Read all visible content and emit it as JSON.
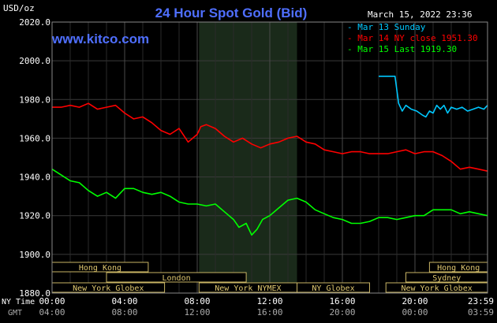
{
  "chart_data": {
    "type": "line",
    "title": "24 Hour Spot Gold (Bid)",
    "site": "www.kitco.com",
    "timestamp": "March 15, 2022 23:36",
    "unit_label": "USD/oz",
    "y_ticks": [
      "2020.0",
      "2000.0",
      "1980.0",
      "1960.0",
      "1940.0",
      "1920.0",
      "1900.0",
      "1880.0"
    ],
    "ylim": [
      1880,
      2020
    ],
    "xlim": [
      0,
      24
    ],
    "x_ticks": [
      0,
      4,
      8,
      12,
      16,
      20,
      24
    ],
    "x_tick_labels_ny": [
      "00:00",
      "04:00",
      "08:00",
      "12:00",
      "16:00",
      "20:00",
      "23:59"
    ],
    "x_tick_labels_gmt": [
      "04:00",
      "08:00",
      "12:00",
      "16:00",
      "20:00",
      "00:00",
      "03:59"
    ],
    "ny_time_label": "NY Time",
    "gmt_label": "GMT",
    "shaded_session": [
      8.1,
      13.5
    ],
    "legend": [
      {
        "label": "Mar 13 Sunday",
        "color": "#00c8ff"
      },
      {
        "label": "Mar 14 NY close 1951.30",
        "color": "#ff0000"
      },
      {
        "label": "Mar 15 Last 1919.30",
        "color": "#00ff00"
      }
    ],
    "series": [
      {
        "name": "Mar 13 Sunday",
        "color": "#00c8ff",
        "x": [
          18,
          18.3,
          18.6,
          18.9,
          19.0,
          19.1,
          19.3,
          19.5,
          19.8,
          20.1,
          20.4,
          20.6,
          20.8,
          21.0,
          21.2,
          21.4,
          21.6,
          21.8,
          22.0,
          22.3,
          22.6,
          22.9,
          23.2,
          23.5,
          23.8,
          24.0
        ],
        "y": [
          1992,
          1992,
          1992,
          1992,
          1985,
          1978,
          1974,
          1977,
          1975,
          1974,
          1972,
          1971,
          1974,
          1973,
          1977,
          1975,
          1977,
          1973,
          1976,
          1975,
          1976,
          1974,
          1975,
          1976,
          1975,
          1977
        ]
      },
      {
        "name": "Mar 14 NY close 1951.30",
        "color": "#ff0000",
        "x": [
          0,
          0.5,
          1,
          1.5,
          2,
          2.5,
          3,
          3.5,
          4,
          4.5,
          5,
          5.5,
          6,
          6.5,
          7,
          7.5,
          8,
          8.2,
          8.5,
          9,
          9.5,
          10,
          10.5,
          11,
          11.5,
          12,
          12.5,
          13,
          13.5,
          14,
          14.5,
          15,
          15.5,
          16,
          16.5,
          17,
          17.5,
          18,
          18.5,
          19,
          19.5,
          20,
          20.5,
          21,
          21.5,
          22,
          22.5,
          23,
          23.5,
          24
        ],
        "y": [
          1976,
          1976,
          1977,
          1976,
          1978,
          1975,
          1976,
          1977,
          1973,
          1970,
          1971,
          1968,
          1964,
          1962,
          1965,
          1958,
          1962,
          1966,
          1967,
          1965,
          1961,
          1958,
          1960,
          1957,
          1955,
          1957,
          1958,
          1960,
          1961,
          1958,
          1957,
          1954,
          1953,
          1952,
          1953,
          1953,
          1952,
          1952,
          1952,
          1953,
          1954,
          1952,
          1953,
          1953,
          1951,
          1948,
          1944,
          1945,
          1944,
          1943
        ]
      },
      {
        "name": "Mar 15 Last 1919.30",
        "color": "#00ff00",
        "x": [
          0,
          0.5,
          1,
          1.5,
          2,
          2.5,
          3,
          3.5,
          4,
          4.5,
          5,
          5.5,
          6,
          6.5,
          7,
          7.5,
          8,
          8.5,
          9,
          9.5,
          10,
          10.3,
          10.7,
          11,
          11.3,
          11.6,
          12,
          12.5,
          13,
          13.5,
          14,
          14.5,
          15,
          15.5,
          16,
          16.5,
          17,
          17.5,
          18,
          18.5,
          19,
          19.5,
          20,
          20.5,
          21,
          21.5,
          22,
          22.5,
          23,
          23.5,
          24
        ],
        "y": [
          1944,
          1941,
          1938,
          1937,
          1933,
          1930,
          1932,
          1929,
          1934,
          1934,
          1932,
          1931,
          1932,
          1930,
          1927,
          1926,
          1926,
          1925,
          1926,
          1922,
          1918,
          1914,
          1916,
          1910,
          1913,
          1918,
          1920,
          1924,
          1928,
          1929,
          1927,
          1923,
          1921,
          1919,
          1918,
          1916,
          1916,
          1917,
          1919,
          1919,
          1918,
          1919,
          1920,
          1920,
          1923,
          1923,
          1923,
          1921,
          1922,
          1921,
          1920
        ]
      }
    ],
    "sessions": [
      {
        "label": "Hong Kong",
        "row": 0,
        "start": 0,
        "end": 5.3
      },
      {
        "label": "London",
        "row": 1,
        "start": 3,
        "end": 10.7
      },
      {
        "label": "New York Globex",
        "row": 2,
        "start": 0,
        "end": 6.2
      },
      {
        "label": "New York NYMEX",
        "row": 2,
        "start": 8.1,
        "end": 13.5
      },
      {
        "label": "NY Globex",
        "row": 2,
        "start": 13.5,
        "end": 17.5
      },
      {
        "label": "Hong Kong",
        "row": 0,
        "start": 20.8,
        "end": 24
      },
      {
        "label": "Sydney",
        "row": 1,
        "start": 19.5,
        "end": 24
      },
      {
        "label": "New York Globex",
        "row": 2,
        "start": 18.4,
        "end": 24
      }
    ]
  }
}
